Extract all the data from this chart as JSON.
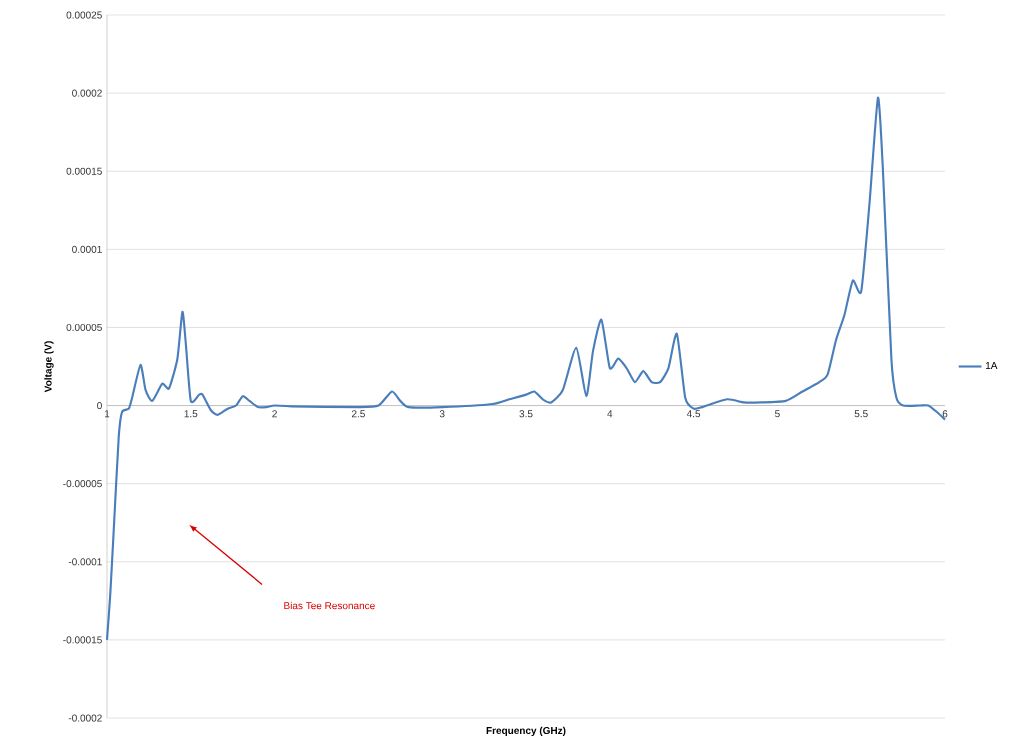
{
  "chart_data": {
    "type": "line",
    "xlabel": "Frequency (GHz)",
    "ylabel": "Voltage (V)",
    "x": [
      1.0,
      1.02,
      1.04,
      1.07,
      1.09,
      1.13,
      1.15,
      1.2,
      1.23,
      1.27,
      1.33,
      1.37,
      1.42,
      1.45,
      1.47,
      1.5,
      1.55,
      1.57,
      1.62,
      1.66,
      1.72,
      1.77,
      1.81,
      1.85,
      1.9,
      1.95,
      2.0,
      2.1,
      2.5,
      2.62,
      2.7,
      2.75,
      2.8,
      3.0,
      3.3,
      3.4,
      3.5,
      3.55,
      3.6,
      3.65,
      3.72,
      3.8,
      3.86,
      3.9,
      3.95,
      4.0,
      4.05,
      4.1,
      4.15,
      4.2,
      4.25,
      4.3,
      4.35,
      4.4,
      4.45,
      4.5,
      4.55,
      4.7,
      4.8,
      4.9,
      5.05,
      5.15,
      5.25,
      5.3,
      5.35,
      5.4,
      5.45,
      5.5,
      5.55,
      5.6,
      5.63,
      5.68,
      5.71,
      5.75,
      5.85,
      5.9,
      5.95,
      6.0
    ],
    "series": [
      {
        "name": "1A",
        "color": "#4a7ebb",
        "values": [
          -0.00015,
          -0.00012,
          -8e-05,
          -2e-05,
          -4e-06,
          -2e-06,
          5e-06,
          2.6e-05,
          1e-05,
          3e-06,
          1.4e-05,
          1.1e-05,
          3e-05,
          6e-05,
          4e-05,
          3e-06,
          7e-06,
          7e-06,
          -3e-06,
          -6e-06,
          -2e-06,
          0.0,
          6e-06,
          3e-06,
          -1e-06,
          -1e-06,
          0.0,
          -5e-07,
          -1e-06,
          0.0,
          9e-06,
          3e-06,
          -1e-06,
          -1e-06,
          1e-06,
          4e-06,
          7e-06,
          9e-06,
          4e-06,
          2e-06,
          1e-05,
          3.7e-05,
          6e-06,
          3.5e-05,
          5.5e-05,
          2.4e-05,
          3e-05,
          2.4e-05,
          1.5e-05,
          2.2e-05,
          1.5e-05,
          1.5e-05,
          2.4e-05,
          4.6e-05,
          5e-06,
          -2e-06,
          -1e-06,
          4e-06,
          2e-06,
          2e-06,
          3e-06,
          9e-06,
          1.5e-05,
          2e-05,
          4.2e-05,
          5.8e-05,
          8e-05,
          7.3e-05,
          0.00013,
          0.000197,
          0.00015,
          3e-05,
          5e-06,
          0.0,
          0.0,
          0.0,
          -4e-06,
          -9e-06
        ]
      }
    ],
    "xlim": [
      1,
      6
    ],
    "ylim": [
      -0.0002,
      0.00025
    ],
    "xticks": [
      1,
      1.5,
      2,
      2.5,
      3,
      3.5,
      4,
      4.5,
      5,
      5.5,
      6
    ],
    "yticks": [
      {
        "value": -0.0002,
        "label": "-0.0002"
      },
      {
        "value": -0.00015,
        "label": "-0.00015"
      },
      {
        "value": -0.0001,
        "label": "-0.0001"
      },
      {
        "value": -5e-05,
        "label": "-0.00005"
      },
      {
        "value": 0,
        "label": "0"
      },
      {
        "value": 5e-05,
        "label": "0.00005"
      },
      {
        "value": 0.0001,
        "label": "0.0001"
      },
      {
        "value": 0.00015,
        "label": "0.00015"
      },
      {
        "value": 0.0002,
        "label": "0.0002"
      },
      {
        "value": 0.00025,
        "label": "0.00025"
      }
    ],
    "grid": "y",
    "legend": "right",
    "marker": "none",
    "line_style": "solid",
    "annotations": [
      "Bias Tee Resonance"
    ]
  }
}
